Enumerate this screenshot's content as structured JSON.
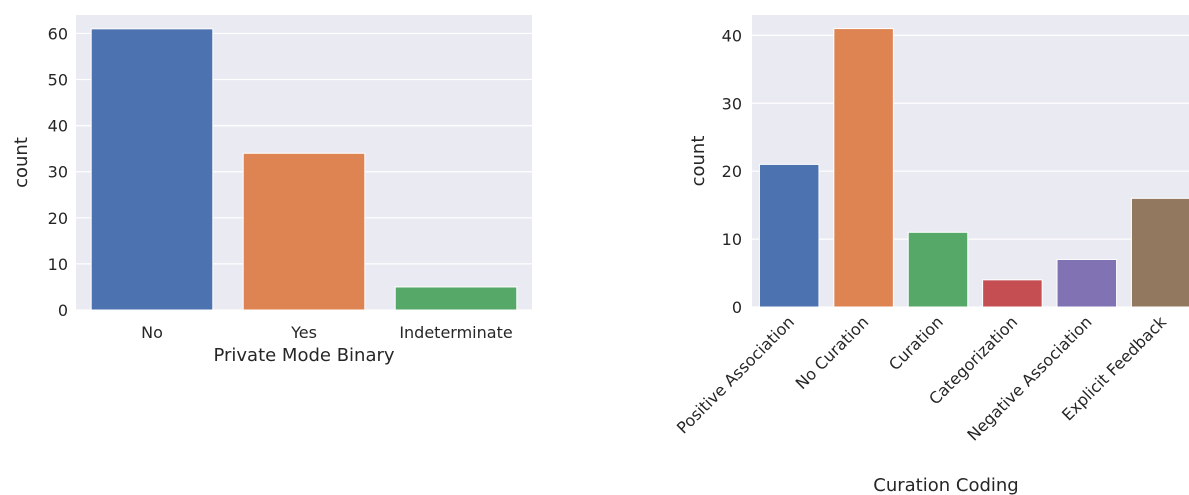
{
  "chart_data": [
    {
      "type": "bar",
      "title": "",
      "xlabel": "Private Mode Binary",
      "ylabel": "count",
      "categories": [
        "No",
        "Yes",
        "Indeterminate"
      ],
      "values": [
        61,
        34,
        5
      ],
      "colors": [
        "#4c72b0",
        "#dd8452",
        "#55a868"
      ],
      "ylim": [
        0,
        64
      ],
      "yticks": [
        0,
        10,
        20,
        30,
        40,
        50,
        60
      ],
      "grid": true,
      "background": "#eaeaf2"
    },
    {
      "type": "bar",
      "title": "",
      "xlabel": "Curation Coding",
      "ylabel": "count",
      "categories": [
        "Positive Association",
        "No Curation",
        "Curation",
        "Categorization",
        "Negative Association",
        "Explicit Feedback"
      ],
      "values": [
        21,
        41,
        11,
        4,
        7,
        16
      ],
      "colors": [
        "#4c72b0",
        "#dd8452",
        "#55a868",
        "#c44e52",
        "#8172b3",
        "#937860"
      ],
      "ylim": [
        0,
        43
      ],
      "yticks": [
        0,
        10,
        20,
        30,
        40
      ],
      "grid": true,
      "background": "#eaeaf2"
    }
  ]
}
